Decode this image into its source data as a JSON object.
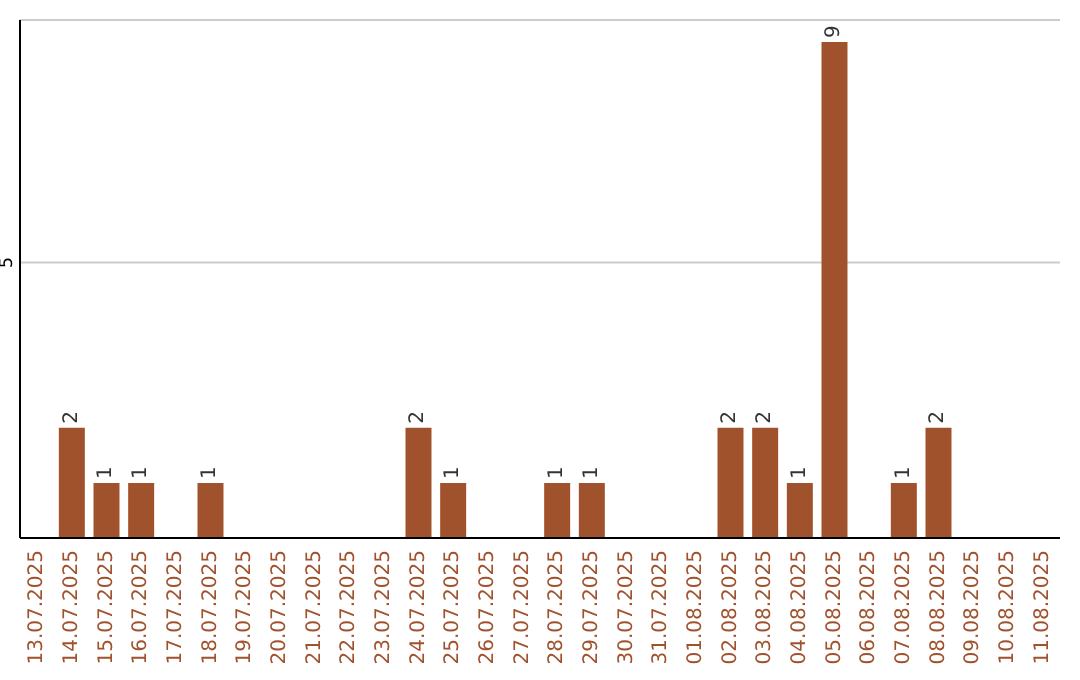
{
  "chart_data": {
    "type": "bar",
    "categories": [
      "13.07.2025",
      "14.07.2025",
      "15.07.2025",
      "16.07.2025",
      "17.07.2025",
      "18.07.2025",
      "19.07.2025",
      "20.07.2025",
      "21.07.2025",
      "22.07.2025",
      "23.07.2025",
      "24.07.2025",
      "25.07.2025",
      "26.07.2025",
      "27.07.2025",
      "28.07.2025",
      "29.07.2025",
      "30.07.2025",
      "31.07.2025",
      "01.08.2025",
      "02.08.2025",
      "03.08.2025",
      "04.08.2025",
      "05.08.2025",
      "06.08.2025",
      "07.08.2025",
      "08.08.2025",
      "09.08.2025",
      "10.08.2025",
      "11.08.2025"
    ],
    "values": [
      null,
      2,
      1,
      1,
      null,
      1,
      null,
      null,
      null,
      null,
      null,
      2,
      1,
      null,
      null,
      1,
      1,
      null,
      null,
      null,
      2,
      2,
      1,
      9,
      null,
      1,
      2,
      null,
      null,
      null
    ],
    "color": "#a0522d",
    "ylim": [
      0,
      9.4
    ],
    "yticks": [
      5
    ],
    "grid": "y",
    "data_labels": true
  }
}
